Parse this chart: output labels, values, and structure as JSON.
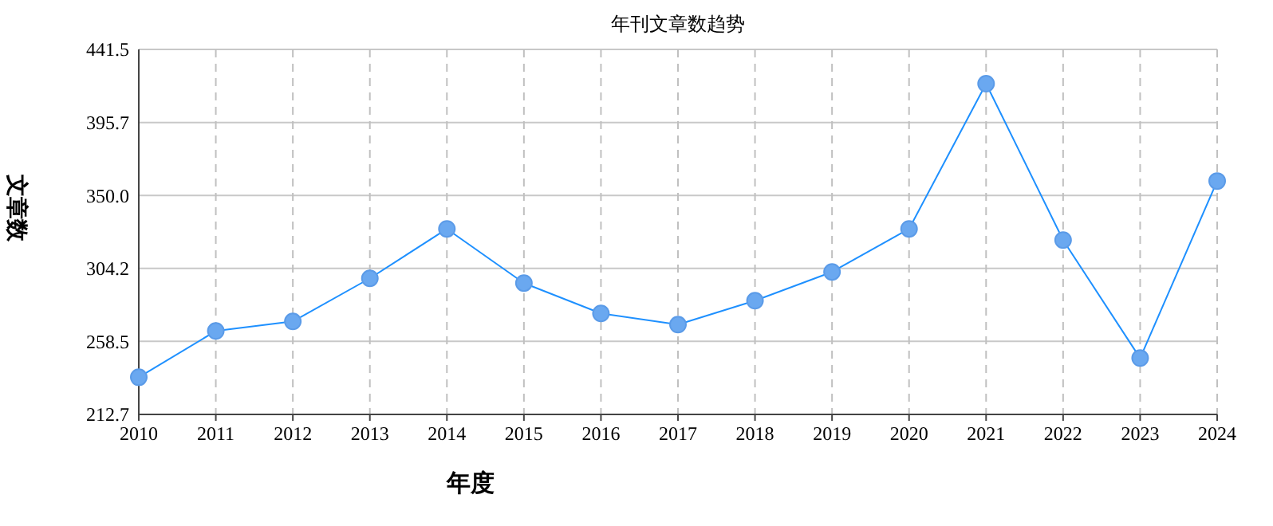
{
  "chart_data": {
    "type": "line",
    "title": "年刊文章数趋势",
    "xlabel": "年度",
    "ylabel": "文章数",
    "categories": [
      "2010",
      "2011",
      "2012",
      "2013",
      "2014",
      "2015",
      "2016",
      "2017",
      "2018",
      "2019",
      "2020",
      "2021",
      "2022",
      "2023",
      "2024"
    ],
    "series": [
      {
        "color": "#1e90ff",
        "values": [
          236,
          265,
          271,
          298,
          329,
          295,
          276,
          269,
          284,
          302,
          329,
          420,
          322,
          248,
          359
        ]
      }
    ],
    "ylim": [
      212.7,
      441.5
    ],
    "yticks": [
      212.7,
      258.5,
      304.2,
      {
        "value": 350,
        "label": "350.0"
      },
      395.7,
      441.5
    ],
    "grid": true,
    "marker": "circle"
  }
}
